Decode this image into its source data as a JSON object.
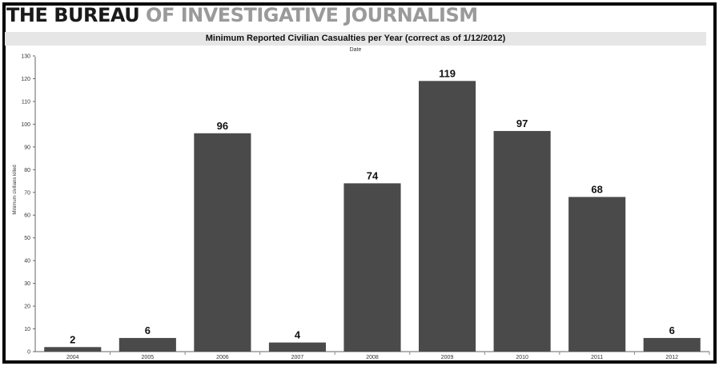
{
  "header": {
    "brand_dark": "THE BUREAU",
    "brand_light": "OF INVESTIGATIVE JOURNALISM"
  },
  "chart_data": {
    "type": "bar",
    "title": "Minimum Reported Civilian Casualties per Year (correct as of 1/12/2012)",
    "subtitle": "Date",
    "xlabel": "",
    "ylabel": "Minimum civilians killed",
    "categories": [
      "2004",
      "2005",
      "2006",
      "2007",
      "2008",
      "2009",
      "2010",
      "2011",
      "2012"
    ],
    "values": [
      2,
      6,
      96,
      4,
      74,
      119,
      97,
      68,
      6
    ],
    "data_labels": [
      "2",
      "6",
      "96",
      "4",
      "74",
      "119",
      "97",
      "68",
      "6"
    ],
    "ylim": [
      0,
      130
    ],
    "yticks": [
      0,
      10,
      20,
      30,
      40,
      50,
      60,
      70,
      80,
      90,
      100,
      110,
      120,
      130
    ],
    "grid": false,
    "legend": "none",
    "bar_color": "#4a4a4a"
  }
}
